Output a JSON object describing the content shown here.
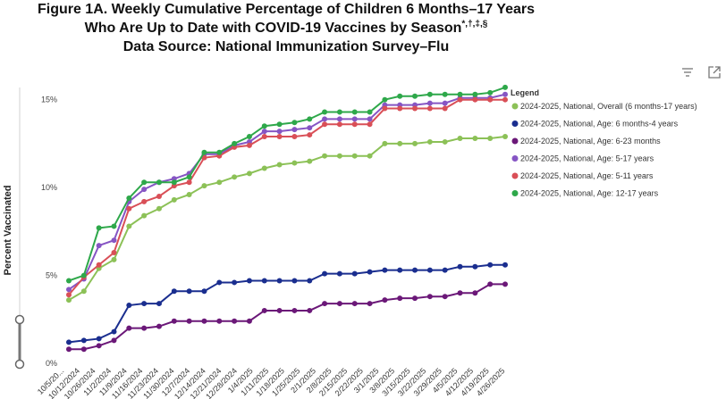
{
  "title": {
    "line1": "Figure 1A. Weekly Cumulative Percentage of Children 6 Months–17 Years",
    "line2_main": "Who Are Up to Date with COVID-19 Vaccines by Season",
    "line2_sup": "*,†,‡,§",
    "line3": "Data Source: National Immunization Survey–Flu"
  },
  "toolbar": {
    "filter_icon": "filter-lines-icon",
    "expand_icon": "expand-icon"
  },
  "chart_data": {
    "type": "line",
    "ylabel": "Percent Vaccinated",
    "yticks": [
      0,
      5,
      10,
      15
    ],
    "ytick_labels": [
      "0%",
      "5%",
      "10%",
      "15%"
    ],
    "ylim": [
      0,
      16
    ],
    "legend_title": "Legend",
    "x": [
      "10/5/20...",
      "10/12/2024",
      "10/19/2024",
      "10/26/2024",
      "11/2/2024",
      "11/9/2024",
      "11/16/2024",
      "11/23/2024",
      "11/30/2024",
      "12/7/2024",
      "12/14/2024",
      "12/21/2024",
      "12/28/2024",
      "1/4/2025",
      "1/11/2025",
      "1/18/2025",
      "1/25/2025",
      "2/1/2025",
      "2/8/2025",
      "2/15/2025",
      "2/22/2025",
      "3/1/2025",
      "3/8/2025",
      "3/15/2025",
      "3/22/2025",
      "3/29/2025",
      "4/5/2025",
      "4/12/2025",
      "4/19/2025",
      "4/26/2025"
    ],
    "x_tick_labels": [
      "10/5/20...",
      "10/12/2024",
      "10/26/2024",
      "11/2/2024",
      "11/9/2024",
      "11/16/2024",
      "11/23/2024",
      "11/30/2024",
      "12/7/2024",
      "12/14/2024",
      "12/21/2024",
      "12/28/2024",
      "1/4/2025",
      "1/11/2025",
      "1/18/2025",
      "1/25/2025",
      "2/1/2025",
      "2/8/2025",
      "2/15/2025",
      "2/22/2025",
      "3/1/2025",
      "3/8/2025",
      "3/15/2025",
      "3/22/2025",
      "3/29/2025",
      "4/5/2025",
      "4/12/2025",
      "4/19/2025",
      "4/26/2025"
    ],
    "series": [
      {
        "name": "2024-2025, National, Overall (6 months-17 years)",
        "color": "#8cc157",
        "values": [
          3.6,
          4.1,
          5.4,
          5.9,
          7.8,
          8.4,
          8.8,
          9.3,
          9.6,
          10.1,
          10.3,
          10.6,
          10.8,
          11.1,
          11.3,
          11.4,
          11.5,
          11.8,
          11.8,
          11.8,
          11.8,
          12.5,
          12.5,
          12.5,
          12.6,
          12.6,
          12.8,
          12.8,
          12.8,
          12.9
        ]
      },
      {
        "name": "2024-2025, National, Age: 6 months-4 years",
        "color": "#1a2e8f",
        "values": [
          1.2,
          1.3,
          1.4,
          1.8,
          3.3,
          3.4,
          3.4,
          4.1,
          4.1,
          4.1,
          4.6,
          4.6,
          4.7,
          4.7,
          4.7,
          4.7,
          4.7,
          5.1,
          5.1,
          5.1,
          5.2,
          5.3,
          5.3,
          5.3,
          5.3,
          5.3,
          5.5,
          5.5,
          5.6,
          5.6
        ]
      },
      {
        "name": "2024-2025, National, Age: 6-23 months",
        "color": "#6b1878",
        "values": [
          0.8,
          0.8,
          1.0,
          1.3,
          2.0,
          2.0,
          2.1,
          2.4,
          2.4,
          2.4,
          2.4,
          2.4,
          2.4,
          3.0,
          3.0,
          3.0,
          3.0,
          3.4,
          3.4,
          3.4,
          3.4,
          3.6,
          3.7,
          3.7,
          3.8,
          3.8,
          4.0,
          4.0,
          4.5,
          4.5
        ]
      },
      {
        "name": "2024-2025, National, Age: 5-17 years",
        "color": "#8655c4",
        "values": [
          4.2,
          4.8,
          6.7,
          7.0,
          9.2,
          9.9,
          10.3,
          10.5,
          10.8,
          11.9,
          11.9,
          12.4,
          12.6,
          13.2,
          13.2,
          13.3,
          13.4,
          13.9,
          13.9,
          13.9,
          13.9,
          14.7,
          14.7,
          14.7,
          14.8,
          14.8,
          15.1,
          15.1,
          15.1,
          15.3
        ]
      },
      {
        "name": "2024-2025, National, Age: 5-11 years",
        "color": "#d94f57",
        "values": [
          3.9,
          4.9,
          5.6,
          6.3,
          8.8,
          9.2,
          9.5,
          10.1,
          10.3,
          11.7,
          11.8,
          12.3,
          12.4,
          12.9,
          12.9,
          12.9,
          13.0,
          13.6,
          13.6,
          13.6,
          13.6,
          14.5,
          14.5,
          14.5,
          14.5,
          14.5,
          15.0,
          15.0,
          15.0,
          15.0
        ]
      },
      {
        "name": "2024-2025, National, Age: 12-17 years",
        "color": "#2ea84a",
        "values": [
          4.7,
          5.0,
          7.7,
          7.8,
          9.4,
          10.3,
          10.3,
          10.3,
          10.6,
          12.0,
          12.0,
          12.5,
          12.9,
          13.5,
          13.6,
          13.7,
          13.9,
          14.3,
          14.3,
          14.3,
          14.3,
          15.0,
          15.2,
          15.2,
          15.3,
          15.3,
          15.3,
          15.3,
          15.4,
          15.7
        ]
      }
    ]
  }
}
